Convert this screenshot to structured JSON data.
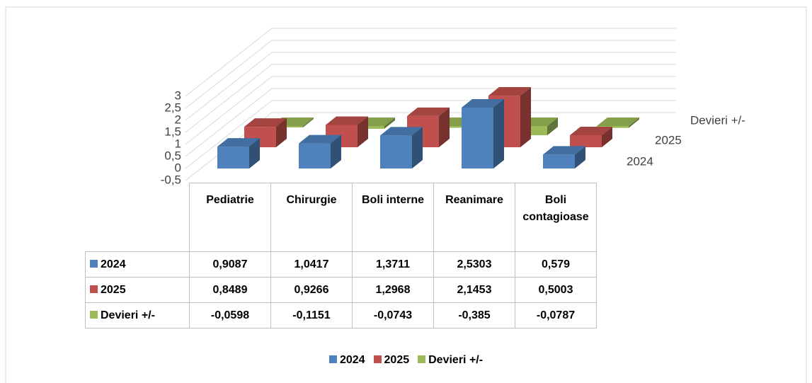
{
  "chart_data": {
    "type": "bar3d",
    "categories": [
      "Pediatrie",
      "Chirurgie",
      "Boli interne",
      "Reanimare",
      "Boli contagioase"
    ],
    "series": [
      {
        "name": "2024",
        "color": "#4f81bd",
        "values": [
          0.9087,
          1.0417,
          1.3711,
          2.5303,
          0.579
        ],
        "value_labels": [
          "0,9087",
          "1,0417",
          "1,3711",
          "2,5303",
          "0,579"
        ]
      },
      {
        "name": "2025",
        "color": "#c0504d",
        "values": [
          0.8489,
          0.9266,
          1.2968,
          2.1453,
          0.5003
        ],
        "value_labels": [
          "0,8489",
          "0,9266",
          "1,2968",
          "2,1453",
          "0,5003"
        ]
      },
      {
        "name": "Devieri +/-",
        "color": "#9bbb59",
        "values": [
          -0.0598,
          -0.1151,
          -0.0743,
          -0.385,
          -0.0787
        ],
        "value_labels": [
          "-0,0598",
          "-0,1151",
          "-0,0743",
          "-0,385",
          "-0,0787"
        ]
      }
    ],
    "ylim": [
      -0.5,
      3
    ],
    "yticks": [
      {
        "value": -0.5,
        "label": "-0,5"
      },
      0,
      {
        "value": 0.5,
        "label": "0,5"
      },
      1,
      {
        "value": 1.5,
        "label": "1,5"
      },
      2,
      {
        "value": 2.5,
        "label": "2,5"
      },
      3
    ],
    "grid": true,
    "legend": "bottom"
  }
}
